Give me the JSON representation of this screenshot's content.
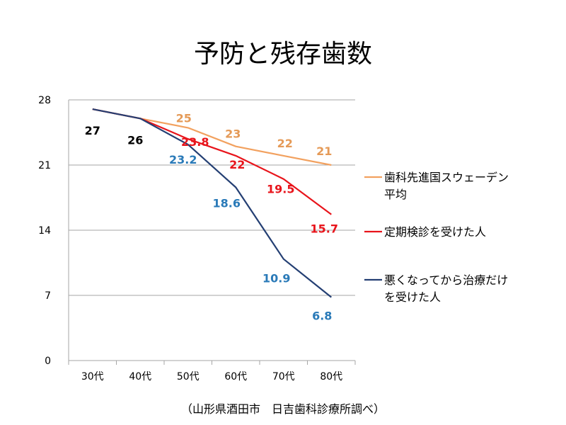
{
  "title": "予防と残存歯数",
  "note": "（山形県酒田市　日吉歯科診療所調べ）",
  "chart_data": {
    "type": "line",
    "x": [
      "30代",
      "40代",
      "50代",
      "60代",
      "70代",
      "80代"
    ],
    "ylim": [
      0,
      28
    ],
    "yticks": [
      0,
      7,
      14,
      21,
      28
    ],
    "grid": true,
    "legend_position": "right",
    "series": [
      {
        "name": "歯科先進国スウェーデン平均",
        "legend_lines": [
          "歯科先進国スウェーデン",
          "平均"
        ],
        "color": "#f2a15f",
        "label_color": "#e59a57",
        "values": [
          27,
          26,
          25,
          23,
          22,
          21
        ],
        "data_labels": [
          null,
          null,
          "25",
          "23",
          "22",
          "21"
        ]
      },
      {
        "name": "定期検診を受けた人",
        "legend_lines": [
          "定期検診を受けた人"
        ],
        "color": "#e8141b",
        "label_color": "#e8141b",
        "values": [
          27,
          26,
          23.8,
          22,
          19.5,
          15.7
        ],
        "data_labels": [
          null,
          null,
          "23.8",
          "22",
          "19.5",
          "15.7"
        ]
      },
      {
        "name": "悪くなってから治療だけを受けた人",
        "legend_lines": [
          "悪くなってから治療だけ",
          "を受けた人"
        ],
        "color": "#243f73",
        "label_color": "#2a7ab8",
        "values": [
          27,
          26,
          23.2,
          18.6,
          10.9,
          6.8
        ],
        "data_labels": [
          null,
          null,
          "23.2",
          "18.6",
          "10.9",
          "6.8"
        ]
      }
    ],
    "shared_labels": [
      {
        "index": 0,
        "text": "27",
        "color": "#000000"
      },
      {
        "index": 1,
        "text": "26",
        "color": "#000000"
      }
    ]
  }
}
